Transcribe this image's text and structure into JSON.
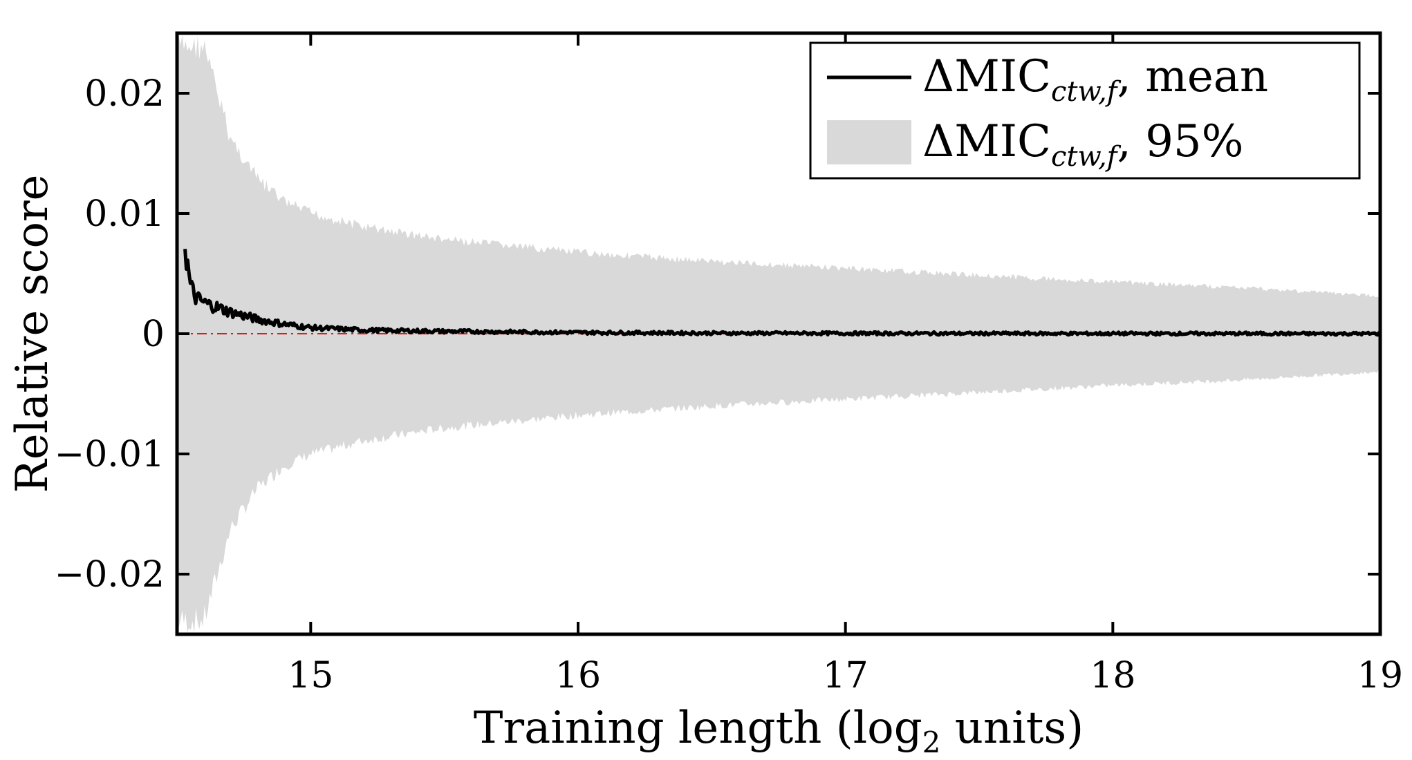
{
  "chart_data": {
    "type": "area",
    "xlabel": "Training length (log",
    "xlabel_subscript": "2",
    "xlabel_suffix": " units)",
    "ylabel": "Relative score",
    "xlim": [
      14.5,
      19
    ],
    "ylim": [
      -0.025,
      0.025
    ],
    "x_ticks": [
      15,
      16,
      17,
      18,
      19
    ],
    "x_tick_labels": [
      "15",
      "16",
      "17",
      "18",
      "19"
    ],
    "y_ticks": [
      -0.02,
      -0.01,
      0,
      0.01,
      0.02
    ],
    "y_tick_labels": [
      "−0.02",
      "−0.01",
      "0",
      "0.01",
      "0.02"
    ],
    "reference_line": {
      "y": 0,
      "color": "#d62020",
      "style": "dash-dot"
    },
    "legend": {
      "placement": "top-right",
      "entries": [
        {
          "main": "ΔMIC",
          "sub": "ctw,f",
          "suffix": ", mean"
        },
        {
          "main": "ΔMIC",
          "sub": "ctw,f",
          "suffix": ", 95%"
        }
      ]
    },
    "series": [
      {
        "kind": "line",
        "color": "#000000",
        "x": [
          14.53,
          14.55,
          14.57,
          14.6,
          14.65,
          14.7,
          14.8,
          14.9,
          15.0,
          15.2,
          15.5,
          16.0,
          16.5,
          17.0,
          17.5,
          18.0,
          18.5,
          19.0
        ],
        "y": [
          0.0073,
          0.004,
          0.003,
          0.0026,
          0.0022,
          0.0018,
          0.0012,
          0.0008,
          0.0005,
          0.0003,
          0.0002,
          0.0001,
          5e-05,
          3e-05,
          2e-05,
          1e-05,
          1e-05,
          0.0
        ]
      },
      {
        "kind": "band",
        "color": "#d9d9d9",
        "x": [
          14.5,
          14.56,
          14.6,
          14.65,
          14.7,
          14.8,
          14.9,
          15.0,
          15.2,
          15.5,
          16.0,
          16.5,
          17.0,
          17.5,
          18.0,
          18.5,
          19.0
        ],
        "upper": [
          0.025,
          0.025,
          0.025,
          0.021,
          0.017,
          0.0135,
          0.0115,
          0.0105,
          0.0093,
          0.0082,
          0.0071,
          0.0063,
          0.0057,
          0.0051,
          0.0045,
          0.004,
          0.0033
        ],
        "lower": [
          -0.025,
          -0.025,
          -0.025,
          -0.021,
          -0.017,
          -0.0135,
          -0.0115,
          -0.0105,
          -0.0093,
          -0.0082,
          -0.0071,
          -0.0063,
          -0.0057,
          -0.0051,
          -0.0045,
          -0.004,
          -0.0033
        ]
      }
    ]
  }
}
